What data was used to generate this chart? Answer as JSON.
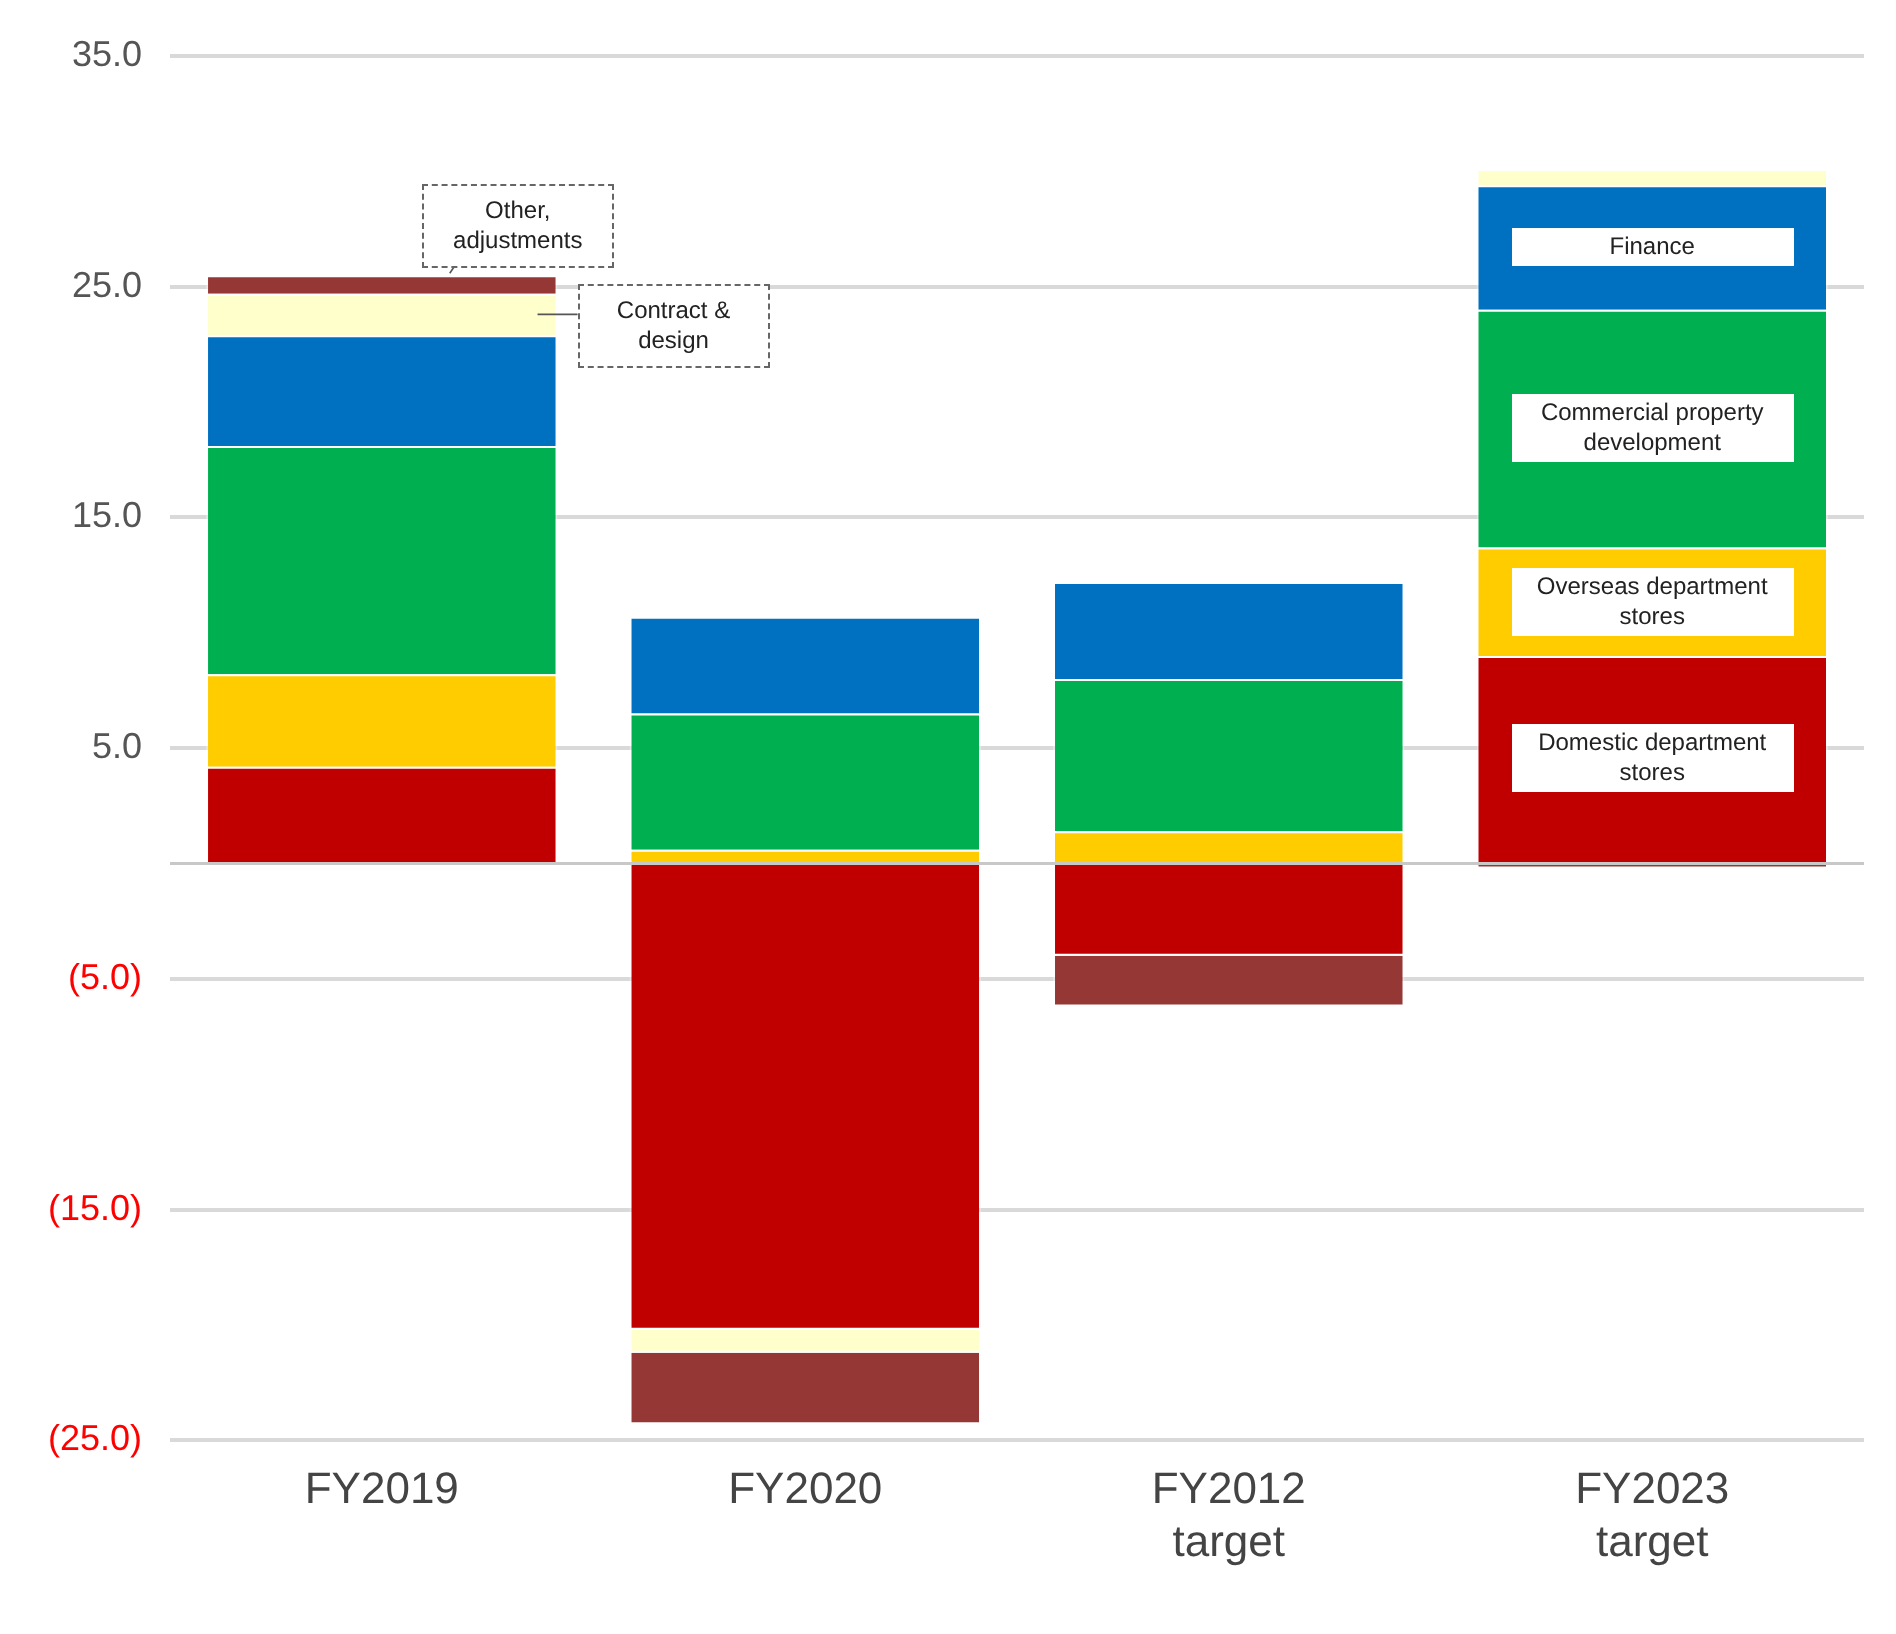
{
  "chart_data": {
    "type": "bar",
    "stacked": true,
    "categories": [
      "FY2019",
      "FY2020",
      "FY2012 target",
      "FY2023 target"
    ],
    "series": [
      {
        "name": "Domestic department stores",
        "color": "#c00000",
        "values": [
          4.2,
          -20.2,
          -4.0,
          9.0
        ]
      },
      {
        "name": "Overseas department stores",
        "color": "#ffcc00",
        "values": [
          4.0,
          0.6,
          1.4,
          4.7
        ]
      },
      {
        "name": "Commercial property development",
        "color": "#00b050",
        "values": [
          9.9,
          5.9,
          6.6,
          10.3
        ]
      },
      {
        "name": "Finance",
        "color": "#0070c0",
        "values": [
          4.8,
          4.2,
          4.2,
          5.4
        ]
      },
      {
        "name": "Contract & design",
        "color": "#ffffcc",
        "values": [
          1.8,
          -1.0,
          null,
          0.7
        ]
      },
      {
        "name": "Other, adjustments",
        "color": "#953735",
        "values": [
          0.8,
          -3.1,
          -2.2,
          -0.2
        ]
      }
    ],
    "ylim": [
      -25,
      35
    ],
    "yticks": [
      {
        "value": 35,
        "label": "35.0"
      },
      {
        "value": 25,
        "label": "25.0"
      },
      {
        "value": 15,
        "label": "15.0"
      },
      {
        "value": 5,
        "label": "5.0"
      },
      {
        "value": -5,
        "label": "(5.0)"
      },
      {
        "value": -15,
        "label": "(15.0)"
      },
      {
        "value": -25,
        "label": "(25.0)"
      }
    ],
    "grid": "y",
    "legend": false
  }
}
